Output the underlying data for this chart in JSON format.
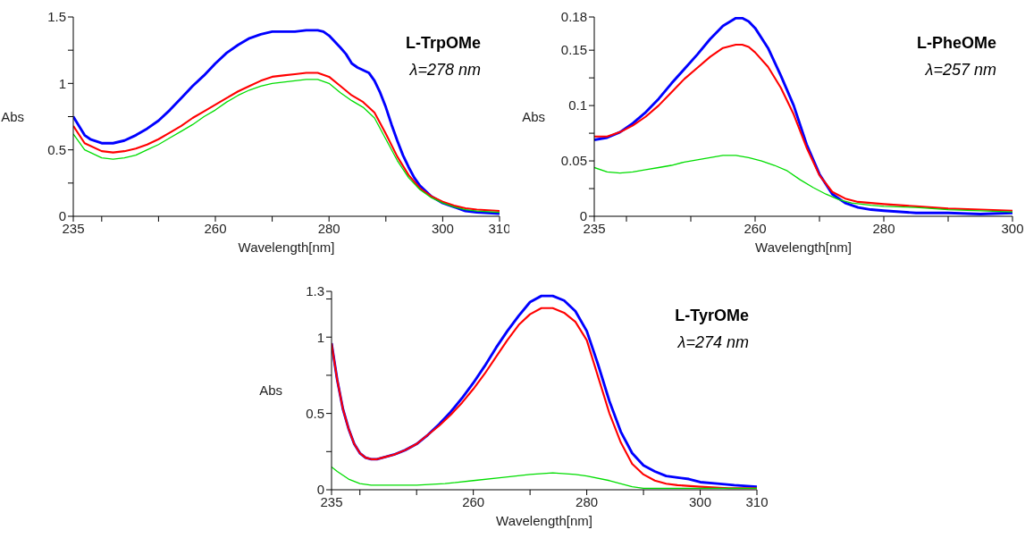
{
  "chart_data": [
    {
      "type": "line",
      "xlabel": "Wavelength[nm]",
      "ylabel": "Abs",
      "annotations": [
        "L-TrpOMe",
        "λ=278 nm"
      ],
      "xlim": [
        235,
        310
      ],
      "xticks": [
        235,
        {
          "value": 240,
          "label": null
        },
        {
          "value": 250,
          "label": null
        },
        260,
        {
          "value": 270,
          "label": null
        },
        280,
        {
          "value": 290,
          "label": null
        },
        300,
        310
      ],
      "ylim": [
        0,
        1.5
      ],
      "yticks": [
        0,
        {
          "value": 0.25,
          "label": null
        },
        0.5,
        {
          "value": 0.75,
          "label": null
        },
        1,
        {
          "value": 1.25,
          "label": null
        },
        1.5
      ],
      "series": [
        {
          "color": "#0000ff",
          "x": [
            235,
            237,
            238,
            240,
            242,
            244,
            246,
            248,
            250,
            252,
            254,
            256,
            258,
            260,
            262,
            264,
            266,
            268,
            270,
            272,
            274,
            276,
            278,
            279,
            280,
            282,
            283,
            284,
            285,
            286,
            287,
            288,
            289,
            290,
            291,
            292,
            293,
            294,
            295,
            296,
            297,
            298,
            300,
            302,
            304,
            306,
            310
          ],
          "values": [
            0.75,
            0.61,
            0.58,
            0.55,
            0.55,
            0.57,
            0.61,
            0.66,
            0.72,
            0.8,
            0.89,
            0.98,
            1.06,
            1.15,
            1.23,
            1.29,
            1.34,
            1.37,
            1.39,
            1.39,
            1.39,
            1.4,
            1.4,
            1.39,
            1.36,
            1.27,
            1.22,
            1.15,
            1.12,
            1.1,
            1.08,
            1.02,
            0.93,
            0.82,
            0.69,
            0.57,
            0.46,
            0.37,
            0.29,
            0.23,
            0.19,
            0.15,
            0.1,
            0.07,
            0.04,
            0.03,
            0.02
          ]
        },
        {
          "color": "#ff0000",
          "x": [
            235,
            237,
            240,
            242,
            244,
            246,
            248,
            250,
            252,
            254,
            256,
            258,
            260,
            262,
            264,
            266,
            268,
            270,
            272,
            274,
            276,
            278,
            280,
            282,
            284,
            286,
            288,
            290,
            292,
            294,
            296,
            298,
            300,
            302,
            304,
            306,
            310
          ],
          "values": [
            0.68,
            0.55,
            0.49,
            0.48,
            0.49,
            0.51,
            0.54,
            0.58,
            0.63,
            0.68,
            0.74,
            0.79,
            0.84,
            0.89,
            0.94,
            0.98,
            1.02,
            1.05,
            1.06,
            1.07,
            1.08,
            1.08,
            1.05,
            0.98,
            0.91,
            0.86,
            0.78,
            0.62,
            0.45,
            0.31,
            0.21,
            0.15,
            0.11,
            0.08,
            0.06,
            0.05,
            0.04
          ]
        },
        {
          "color": "#00dd00",
          "x": [
            235,
            237,
            240,
            242,
            244,
            246,
            248,
            250,
            252,
            254,
            256,
            258,
            260,
            262,
            264,
            266,
            268,
            270,
            272,
            274,
            276,
            278,
            280,
            282,
            284,
            286,
            288,
            290,
            292,
            294,
            296,
            298,
            300,
            302,
            304,
            306,
            310
          ],
          "values": [
            0.62,
            0.5,
            0.44,
            0.43,
            0.44,
            0.46,
            0.5,
            0.54,
            0.59,
            0.64,
            0.69,
            0.75,
            0.8,
            0.86,
            0.91,
            0.95,
            0.98,
            1.0,
            1.01,
            1.02,
            1.03,
            1.03,
            1.0,
            0.93,
            0.87,
            0.82,
            0.74,
            0.58,
            0.42,
            0.29,
            0.2,
            0.14,
            0.1,
            0.07,
            0.05,
            0.04,
            0.03
          ]
        }
      ]
    },
    {
      "type": "line",
      "xlabel": "Wavelength[nm]",
      "ylabel": "Abs",
      "annotations": [
        "L-PheOMe",
        "λ=257 nm"
      ],
      "xlim": [
        235,
        300
      ],
      "xticks": [
        235,
        {
          "value": 240,
          "label": null
        },
        {
          "value": 250,
          "label": null
        },
        260,
        {
          "value": 270,
          "label": null
        },
        280,
        {
          "value": 290,
          "label": null
        },
        300
      ],
      "ylim": [
        0,
        0.18
      ],
      "yticks": [
        0,
        {
          "value": 0.025,
          "label": null
        },
        0.05,
        {
          "value": 0.075,
          "label": null
        },
        0.1,
        {
          "value": 0.125,
          "label": null
        },
        0.15,
        0.18
      ],
      "series": [
        {
          "color": "#0000ff",
          "x": [
            235,
            237,
            239,
            241,
            243,
            245,
            247,
            249,
            251,
            253,
            255,
            257,
            258,
            259,
            260,
            262,
            264,
            266,
            268,
            270,
            272,
            274,
            276,
            278,
            280,
            285,
            290,
            295,
            300
          ],
          "values": [
            0.069,
            0.071,
            0.076,
            0.084,
            0.094,
            0.106,
            0.12,
            0.133,
            0.146,
            0.16,
            0.172,
            0.179,
            0.179,
            0.176,
            0.17,
            0.152,
            0.127,
            0.1,
            0.065,
            0.038,
            0.02,
            0.012,
            0.008,
            0.006,
            0.005,
            0.003,
            0.003,
            0.002,
            0.003
          ]
        },
        {
          "color": "#ff0000",
          "x": [
            235,
            237,
            239,
            241,
            243,
            245,
            247,
            249,
            251,
            253,
            255,
            257,
            258,
            259,
            260,
            262,
            264,
            266,
            268,
            270,
            272,
            274,
            276,
            278,
            280,
            285,
            290,
            295,
            300
          ],
          "values": [
            0.072,
            0.072,
            0.076,
            0.082,
            0.09,
            0.1,
            0.112,
            0.124,
            0.134,
            0.144,
            0.152,
            0.155,
            0.155,
            0.153,
            0.148,
            0.135,
            0.116,
            0.092,
            0.062,
            0.037,
            0.022,
            0.016,
            0.013,
            0.012,
            0.011,
            0.009,
            0.007,
            0.006,
            0.005
          ]
        },
        {
          "color": "#00dd00",
          "x": [
            235,
            237,
            239,
            241,
            243,
            245,
            247,
            249,
            251,
            253,
            255,
            257,
            259,
            261,
            263,
            265,
            267,
            269,
            271,
            273,
            275,
            278,
            280,
            285,
            290,
            295,
            300
          ],
          "values": [
            0.044,
            0.04,
            0.039,
            0.04,
            0.042,
            0.044,
            0.046,
            0.049,
            0.051,
            0.053,
            0.055,
            0.055,
            0.053,
            0.05,
            0.046,
            0.041,
            0.033,
            0.026,
            0.02,
            0.015,
            0.012,
            0.01,
            0.009,
            0.008,
            0.006,
            0.005,
            0.004
          ]
        }
      ]
    },
    {
      "type": "line",
      "xlabel": "Wavelength[nm]",
      "ylabel": "Abs",
      "annotations": [
        "L-TyrOMe",
        "λ=274 nm"
      ],
      "xlim": [
        235,
        310
      ],
      "xticks": [
        235,
        {
          "value": 240,
          "label": null
        },
        {
          "value": 250,
          "label": null
        },
        260,
        {
          "value": 270,
          "label": null
        },
        280,
        {
          "value": 290,
          "label": null
        },
        300,
        310
      ],
      "ylim": [
        0,
        1.3
      ],
      "yticks": [
        0,
        {
          "value": 0.25,
          "label": null
        },
        0.5,
        {
          "value": 0.75,
          "label": null
        },
        1,
        {
          "value": 1.25,
          "label": null
        },
        1.3
      ],
      "series": [
        {
          "color": "#0000ff",
          "x": [
            235,
            236,
            237,
            238,
            239,
            240,
            241,
            242,
            243,
            244,
            246,
            248,
            250,
            252,
            254,
            256,
            258,
            260,
            262,
            264,
            266,
            268,
            270,
            272,
            274,
            276,
            278,
            280,
            282,
            284,
            286,
            288,
            290,
            292,
            294,
            296,
            298,
            300,
            303,
            306,
            310
          ],
          "values": [
            0.96,
            0.72,
            0.53,
            0.4,
            0.3,
            0.24,
            0.21,
            0.2,
            0.2,
            0.21,
            0.23,
            0.26,
            0.3,
            0.36,
            0.43,
            0.51,
            0.6,
            0.7,
            0.81,
            0.93,
            1.04,
            1.14,
            1.23,
            1.27,
            1.27,
            1.24,
            1.17,
            1.04,
            0.82,
            0.58,
            0.38,
            0.24,
            0.16,
            0.12,
            0.09,
            0.08,
            0.07,
            0.05,
            0.04,
            0.03,
            0.02
          ]
        },
        {
          "color": "#ff0000",
          "x": [
            235,
            236,
            237,
            238,
            239,
            240,
            241,
            242,
            243,
            244,
            246,
            248,
            250,
            252,
            254,
            256,
            258,
            260,
            262,
            264,
            266,
            268,
            270,
            272,
            274,
            276,
            278,
            280,
            282,
            284,
            286,
            288,
            290,
            292,
            294,
            296,
            300,
            305,
            310
          ],
          "values": [
            0.96,
            0.72,
            0.53,
            0.4,
            0.3,
            0.24,
            0.21,
            0.2,
            0.2,
            0.21,
            0.23,
            0.26,
            0.3,
            0.36,
            0.42,
            0.49,
            0.57,
            0.66,
            0.76,
            0.87,
            0.98,
            1.08,
            1.15,
            1.19,
            1.19,
            1.16,
            1.1,
            0.98,
            0.74,
            0.5,
            0.31,
            0.17,
            0.1,
            0.06,
            0.04,
            0.03,
            0.02,
            0.01,
            0.01
          ]
        },
        {
          "color": "#00dd00",
          "x": [
            235,
            236,
            238,
            240,
            242,
            245,
            250,
            255,
            260,
            265,
            270,
            274,
            278,
            280,
            284,
            288,
            290,
            295,
            300,
            310
          ],
          "values": [
            0.15,
            0.12,
            0.07,
            0.04,
            0.03,
            0.03,
            0.03,
            0.04,
            0.06,
            0.08,
            0.1,
            0.11,
            0.1,
            0.09,
            0.06,
            0.02,
            0.01,
            0.01,
            0.01,
            0.01
          ]
        }
      ]
    }
  ]
}
